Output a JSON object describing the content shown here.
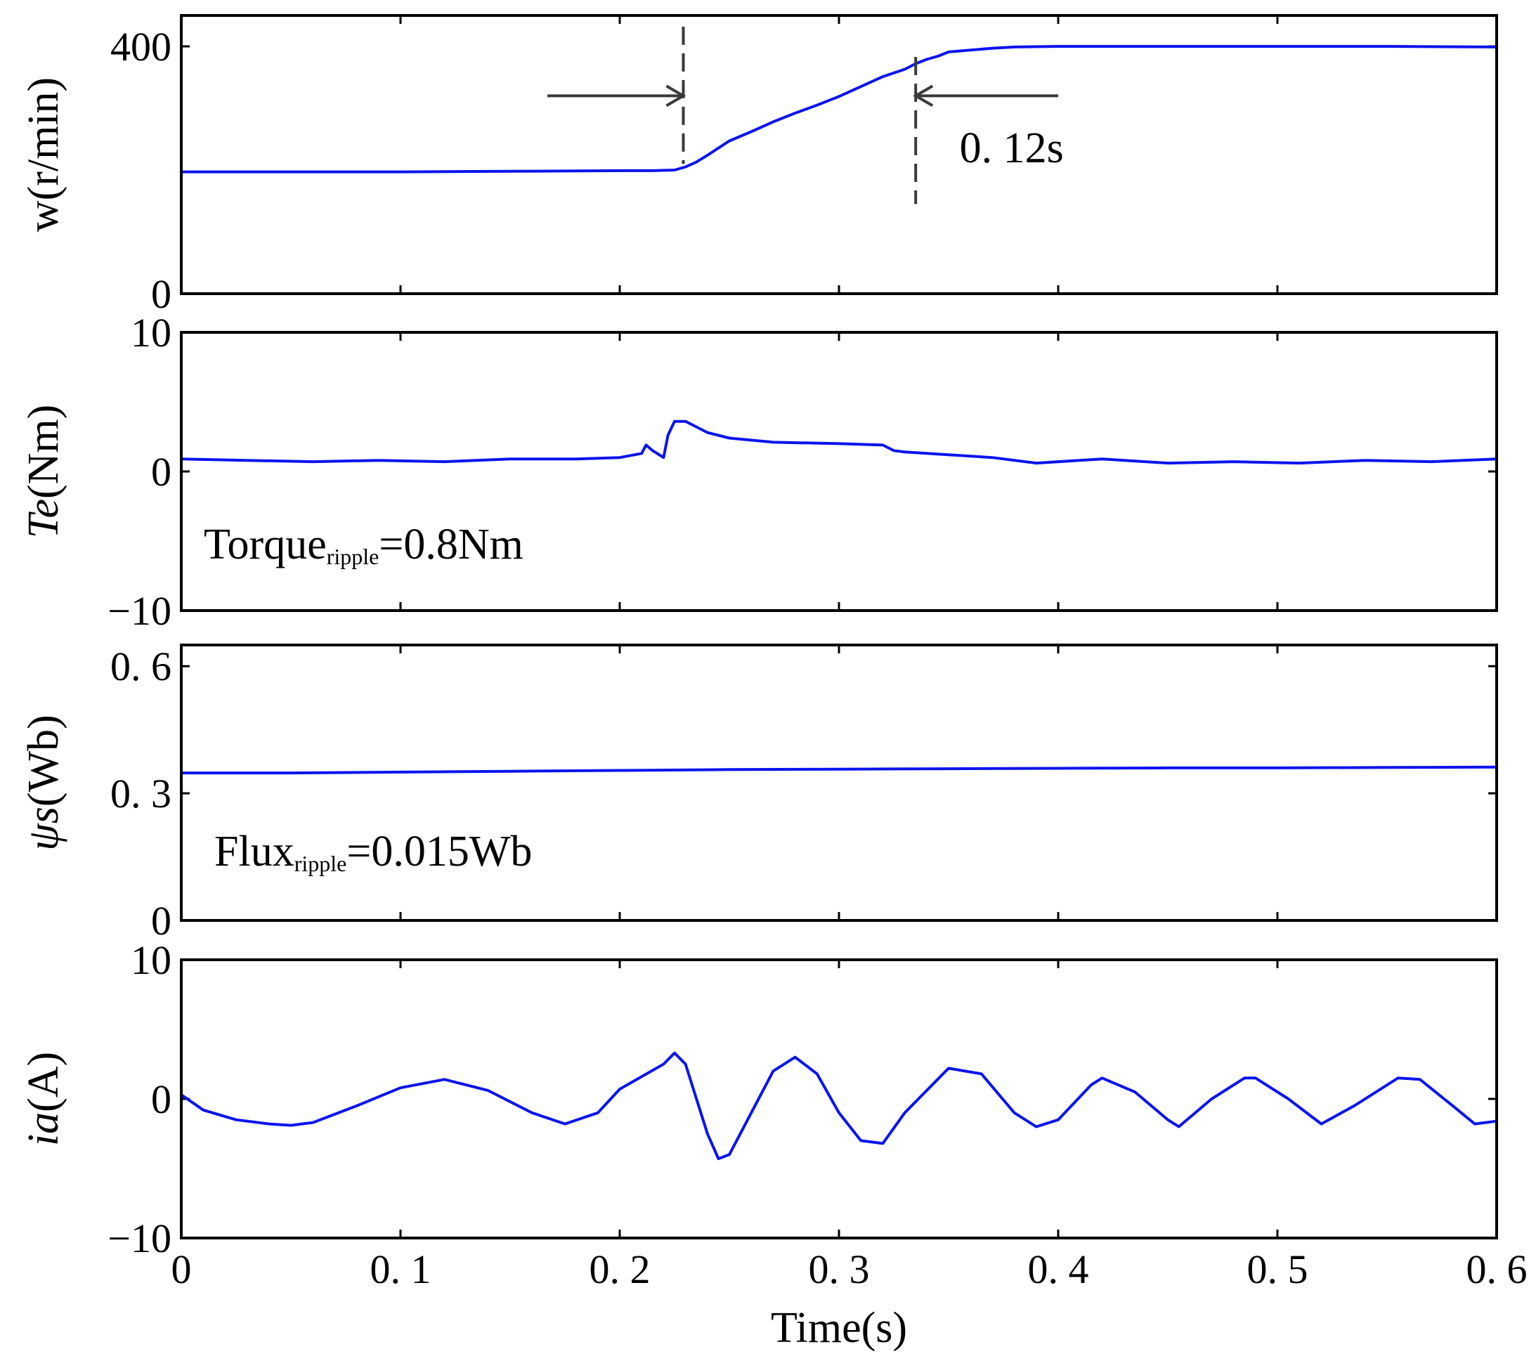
{
  "chart_data": [
    {
      "type": "line",
      "id": "speed",
      "ylabel": "w(r/min)",
      "xlim": [
        0,
        0.6
      ],
      "ylim": [
        0,
        450
      ],
      "ytick_values": [
        0,
        400
      ],
      "ytick_labels": [
        "0",
        "400"
      ],
      "series": [
        {
          "name": "w",
          "color": "#0a14ee",
          "x": [
            0,
            0.05,
            0.1,
            0.15,
            0.2,
            0.215,
            0.225,
            0.23,
            0.235,
            0.24,
            0.25,
            0.26,
            0.27,
            0.28,
            0.29,
            0.3,
            0.31,
            0.32,
            0.33,
            0.335,
            0.34,
            0.345,
            0.35,
            0.36,
            0.37,
            0.38,
            0.4,
            0.45,
            0.5,
            0.55,
            0.6
          ],
          "y": [
            197,
            197,
            197,
            198,
            199,
            199,
            200,
            205,
            213,
            224,
            247,
            262,
            278,
            292,
            305,
            319,
            335,
            351,
            363,
            372,
            379,
            384,
            391,
            394,
            397,
            399,
            400,
            400,
            400,
            400,
            399
          ]
        }
      ],
      "markers": [
        {
          "x": 0.229,
          "y_range": [
            210,
            432
          ]
        },
        {
          "x": 0.335,
          "y_range": [
            145,
            383
          ]
        }
      ],
      "arrows": [
        {
          "x_from": 0.167,
          "x_to": 0.229,
          "y": 320
        },
        {
          "x_from": 0.4,
          "x_to": 0.335,
          "y": 320
        }
      ],
      "annotations": [
        {
          "text": "0. 12s",
          "x": 0.355,
          "y": 235
        }
      ]
    },
    {
      "type": "line",
      "id": "torque",
      "ylabel": "Te(Nm)",
      "ylabel_italic": "Te",
      "ylabel_rest": "(Nm)",
      "xlim": [
        0,
        0.6
      ],
      "ylim": [
        -10,
        10
      ],
      "ytick_values": [
        -10,
        0,
        10
      ],
      "ytick_labels": [
        "−10",
        "0",
        "10"
      ],
      "series": [
        {
          "name": "Te",
          "color": "#0a14ee",
          "x": [
            0,
            0.03,
            0.06,
            0.09,
            0.12,
            0.15,
            0.18,
            0.2,
            0.21,
            0.212,
            0.215,
            0.22,
            0.222,
            0.225,
            0.23,
            0.235,
            0.24,
            0.25,
            0.27,
            0.3,
            0.32,
            0.325,
            0.33,
            0.35,
            0.37,
            0.39,
            0.42,
            0.45,
            0.48,
            0.51,
            0.54,
            0.57,
            0.6
          ],
          "y": [
            0.9,
            0.8,
            0.7,
            0.8,
            0.7,
            0.9,
            0.9,
            1.0,
            1.3,
            1.9,
            1.5,
            1.0,
            2.6,
            3.6,
            3.6,
            3.2,
            2.8,
            2.4,
            2.1,
            2.0,
            1.9,
            1.5,
            1.4,
            1.2,
            1.0,
            0.6,
            0.9,
            0.6,
            0.7,
            0.6,
            0.8,
            0.7,
            0.9
          ]
        }
      ],
      "annotations": [
        {
          "text": "Torque",
          "sub": "ripple",
          "rest": "=0.8Nm"
        }
      ]
    },
    {
      "type": "line",
      "id": "flux",
      "ylabel": "ψs(Wb)",
      "ylabel_italic": "ψs",
      "ylabel_rest": "(Wb)",
      "xlim": [
        0,
        0.6
      ],
      "ylim": [
        0,
        0.65
      ],
      "ytick_values": [
        0,
        0.3,
        0.6
      ],
      "ytick_labels": [
        "0",
        "0. 3",
        "0. 6"
      ],
      "series": [
        {
          "name": "psi_s",
          "color": "#0a14ee",
          "x": [
            0,
            0.05,
            0.1,
            0.15,
            0.2,
            0.25,
            0.3,
            0.35,
            0.4,
            0.45,
            0.5,
            0.55,
            0.6
          ],
          "y": [
            0.348,
            0.348,
            0.35,
            0.352,
            0.354,
            0.356,
            0.357,
            0.358,
            0.359,
            0.36,
            0.36,
            0.361,
            0.362
          ]
        }
      ],
      "annotations": [
        {
          "text": "Flux",
          "sub": "ripple",
          "rest": "=0.015Wb"
        }
      ]
    },
    {
      "type": "line",
      "id": "current",
      "ylabel": "ia(A)",
      "ylabel_italic": "ia",
      "ylabel_rest": "(A)",
      "xlabel": "Time(s)",
      "xlim": [
        0,
        0.6
      ],
      "ylim": [
        -10,
        10
      ],
      "ytick_values": [
        -10,
        0,
        10
      ],
      "ytick_labels": [
        "−10",
        "0",
        "10"
      ],
      "xtick_values": [
        0,
        0.1,
        0.2,
        0.3,
        0.4,
        0.5,
        0.6
      ],
      "xtick_labels": [
        "0",
        "0. 1",
        "0. 2",
        "0. 3",
        "0. 4",
        "0. 5",
        "0. 6"
      ],
      "series": [
        {
          "name": "ia",
          "color": "#0a14ee",
          "x": [
            0,
            0.01,
            0.025,
            0.04,
            0.05,
            0.06,
            0.08,
            0.1,
            0.12,
            0.14,
            0.16,
            0.175,
            0.19,
            0.2,
            0.22,
            0.225,
            0.23,
            0.24,
            0.245,
            0.25,
            0.26,
            0.27,
            0.28,
            0.29,
            0.3,
            0.31,
            0.32,
            0.33,
            0.35,
            0.365,
            0.38,
            0.39,
            0.4,
            0.415,
            0.42,
            0.435,
            0.45,
            0.455,
            0.47,
            0.485,
            0.49,
            0.505,
            0.52,
            0.535,
            0.555,
            0.565,
            0.58,
            0.59,
            0.6
          ],
          "y": [
            0.3,
            -0.8,
            -1.5,
            -1.8,
            -1.9,
            -1.7,
            -0.5,
            0.8,
            1.4,
            0.6,
            -1.0,
            -1.8,
            -1.0,
            0.7,
            2.5,
            3.3,
            2.5,
            -2.5,
            -4.3,
            -4.0,
            -1.0,
            2.0,
            3.0,
            1.8,
            -1.0,
            -3.0,
            -3.2,
            -1.0,
            2.2,
            1.8,
            -1.0,
            -2.0,
            -1.5,
            1.0,
            1.5,
            0.5,
            -1.5,
            -2.0,
            0.0,
            1.5,
            1.5,
            0.0,
            -1.8,
            -0.5,
            1.5,
            1.4,
            -0.5,
            -1.8,
            -1.6
          ]
        }
      ]
    }
  ]
}
